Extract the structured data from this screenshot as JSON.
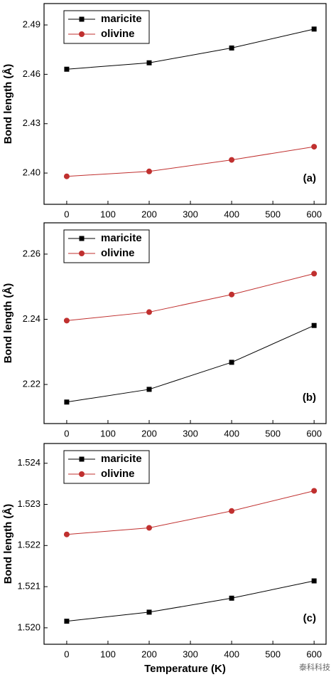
{
  "chart_data": [
    {
      "type": "line",
      "ylabel": "Bond length (Å)",
      "annotation": "(a)",
      "x": [
        0,
        200,
        400,
        600
      ],
      "xlim": [
        -55,
        629
      ],
      "xticks": [
        0,
        100,
        200,
        300,
        400,
        500,
        600
      ],
      "ylim": [
        2.381,
        2.503
      ],
      "yticks": [
        {
          "value": 2.4,
          "label": "2.40"
        },
        2.43,
        2.46,
        2.49
      ],
      "legend": "upper left",
      "series": [
        {
          "name": "maricite",
          "color": "#000000",
          "marker": "square",
          "values": [
            2.4631,
            2.467,
            2.476,
            2.4875
          ]
        },
        {
          "name": "olivine",
          "color": "#c0302f",
          "marker": "circle",
          "values": [
            2.398,
            2.401,
            2.408,
            2.416
          ]
        }
      ]
    },
    {
      "type": "line",
      "ylabel": "Bond length (Å)",
      "annotation": "(b)",
      "x": [
        0,
        200,
        400,
        600
      ],
      "xlim": [
        -55,
        629
      ],
      "xticks": [
        0,
        100,
        200,
        300,
        400,
        500,
        600
      ],
      "ylim": [
        2.208,
        2.2696
      ],
      "yticks": [
        2.22,
        2.24,
        2.26
      ],
      "legend": "upper left",
      "series": [
        {
          "name": "maricite",
          "color": "#000000",
          "marker": "square",
          "values": [
            2.2146,
            2.2185,
            2.2268,
            2.2381
          ]
        },
        {
          "name": "olivine",
          "color": "#c0302f",
          "marker": "circle",
          "values": [
            2.2396,
            2.2422,
            2.2476,
            2.254
          ]
        }
      ]
    },
    {
      "type": "line",
      "ylabel": "Bond length (Å)",
      "xlabel": "Temperature (K)",
      "annotation": "(c)",
      "x": [
        0,
        200,
        400,
        600
      ],
      "xlim": [
        -55,
        629
      ],
      "xticks": [
        0,
        100,
        200,
        300,
        400,
        500,
        600
      ],
      "ylim": [
        1.5196,
        1.52448
      ],
      "yticks": [
        {
          "value": 1.52,
          "label": "1.520"
        },
        1.521,
        1.522,
        1.523,
        1.524
      ],
      "legend": "upper left",
      "series": [
        {
          "name": "maricite",
          "color": "#000000",
          "marker": "square",
          "values": [
            1.52016,
            1.52038,
            1.52072,
            1.52114
          ]
        },
        {
          "name": "olivine",
          "color": "#c0302f",
          "marker": "circle",
          "values": [
            1.52227,
            1.52243,
            1.52284,
            1.52333
          ]
        }
      ]
    }
  ],
  "watermark": "泰科科技"
}
